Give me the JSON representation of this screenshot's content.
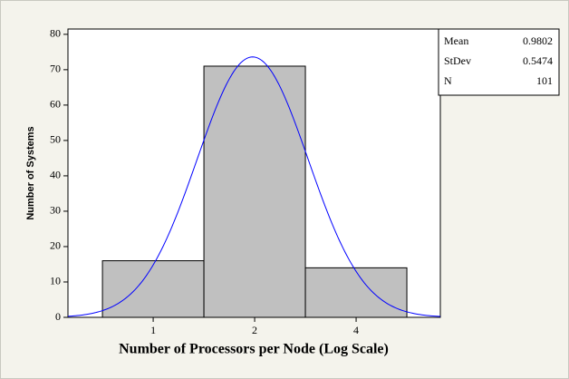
{
  "chart_data": {
    "type": "histogram",
    "xlabel": "Number of Processors per Node (Log Scale)",
    "ylabel": "Number of Systems",
    "bins": [
      -0.5,
      0.5,
      1.5,
      2.5
    ],
    "counts": [
      16,
      71,
      14
    ],
    "color": "#c0c0c0",
    "fit_color": "#0000ff",
    "xlim": [
      -0.84,
      2.83
    ],
    "ylim": [
      0,
      81.5
    ],
    "xticks": [
      {
        "value": 0,
        "label": "1"
      },
      {
        "value": 1,
        "label": "2"
      },
      {
        "value": 2,
        "label": "4"
      }
    ],
    "yticks": [
      0,
      10,
      20,
      30,
      40,
      50,
      60,
      70,
      80
    ],
    "stats": [
      {
        "name": "Mean",
        "value": 0.9802
      },
      {
        "name": "StDev",
        "value": 0.5474
      },
      {
        "name": "N",
        "value": 101
      }
    ]
  }
}
